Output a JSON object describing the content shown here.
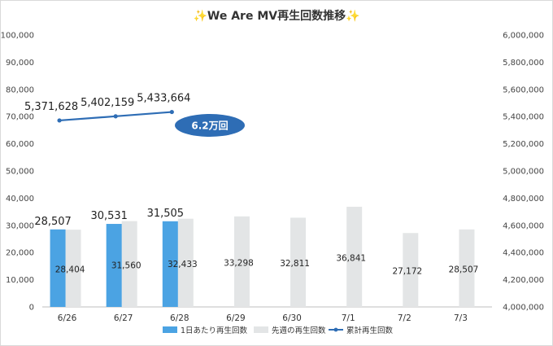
{
  "chart_data": {
    "type": "bar+line",
    "title": "✨We Are MV再生回数推移✨",
    "categories": [
      "6/26",
      "6/27",
      "6/28",
      "6/29",
      "6/30",
      "7/1",
      "7/2",
      "7/3"
    ],
    "series": [
      {
        "name": "1日あたり再生回数",
        "type": "bar",
        "axis": "left",
        "color": "#4BA3E3",
        "values": [
          28507,
          30531,
          31505,
          null,
          null,
          null,
          null,
          null
        ],
        "labels": [
          "28,507",
          "30,531",
          "31,505",
          "",
          "",
          "",
          "",
          ""
        ]
      },
      {
        "name": "先週の再生回数",
        "type": "bar",
        "axis": "left",
        "color": "#E3E5E6",
        "values": [
          28404,
          31560,
          32433,
          33298,
          32811,
          36841,
          27172,
          28507
        ],
        "labels": [
          "28,404",
          "31,560",
          "32,433",
          "33,298",
          "32,811",
          "36,841",
          "27,172",
          "28,507"
        ]
      },
      {
        "name": "累計再生回数",
        "type": "line",
        "axis": "right",
        "color": "#2E6DB5",
        "values": [
          5371628,
          5402159,
          5433664,
          null,
          null,
          null,
          null,
          null
        ],
        "labels": [
          "5,371,628",
          "5,402,159",
          "5,433,664",
          "",
          "",
          "",
          "",
          ""
        ]
      }
    ],
    "ylim_left": [
      0,
      100000
    ],
    "ylim_right": [
      4000000,
      6000000
    ],
    "yticks_left": [
      "0",
      "10,000",
      "20,000",
      "30,000",
      "40,000",
      "50,000",
      "60,000",
      "70,000",
      "80,000",
      "90,000",
      "100,000"
    ],
    "yticks_right": [
      "4,000,000",
      "4,200,000",
      "4,400,000",
      "4,600,000",
      "4,800,000",
      "5,000,000",
      "5,200,000",
      "5,400,000",
      "5,600,000",
      "5,800,000",
      "6,000,000"
    ],
    "annotation": {
      "text": "6.2万回",
      "color": "#2E6DB5"
    },
    "legend_position": "bottom",
    "grid": false
  }
}
